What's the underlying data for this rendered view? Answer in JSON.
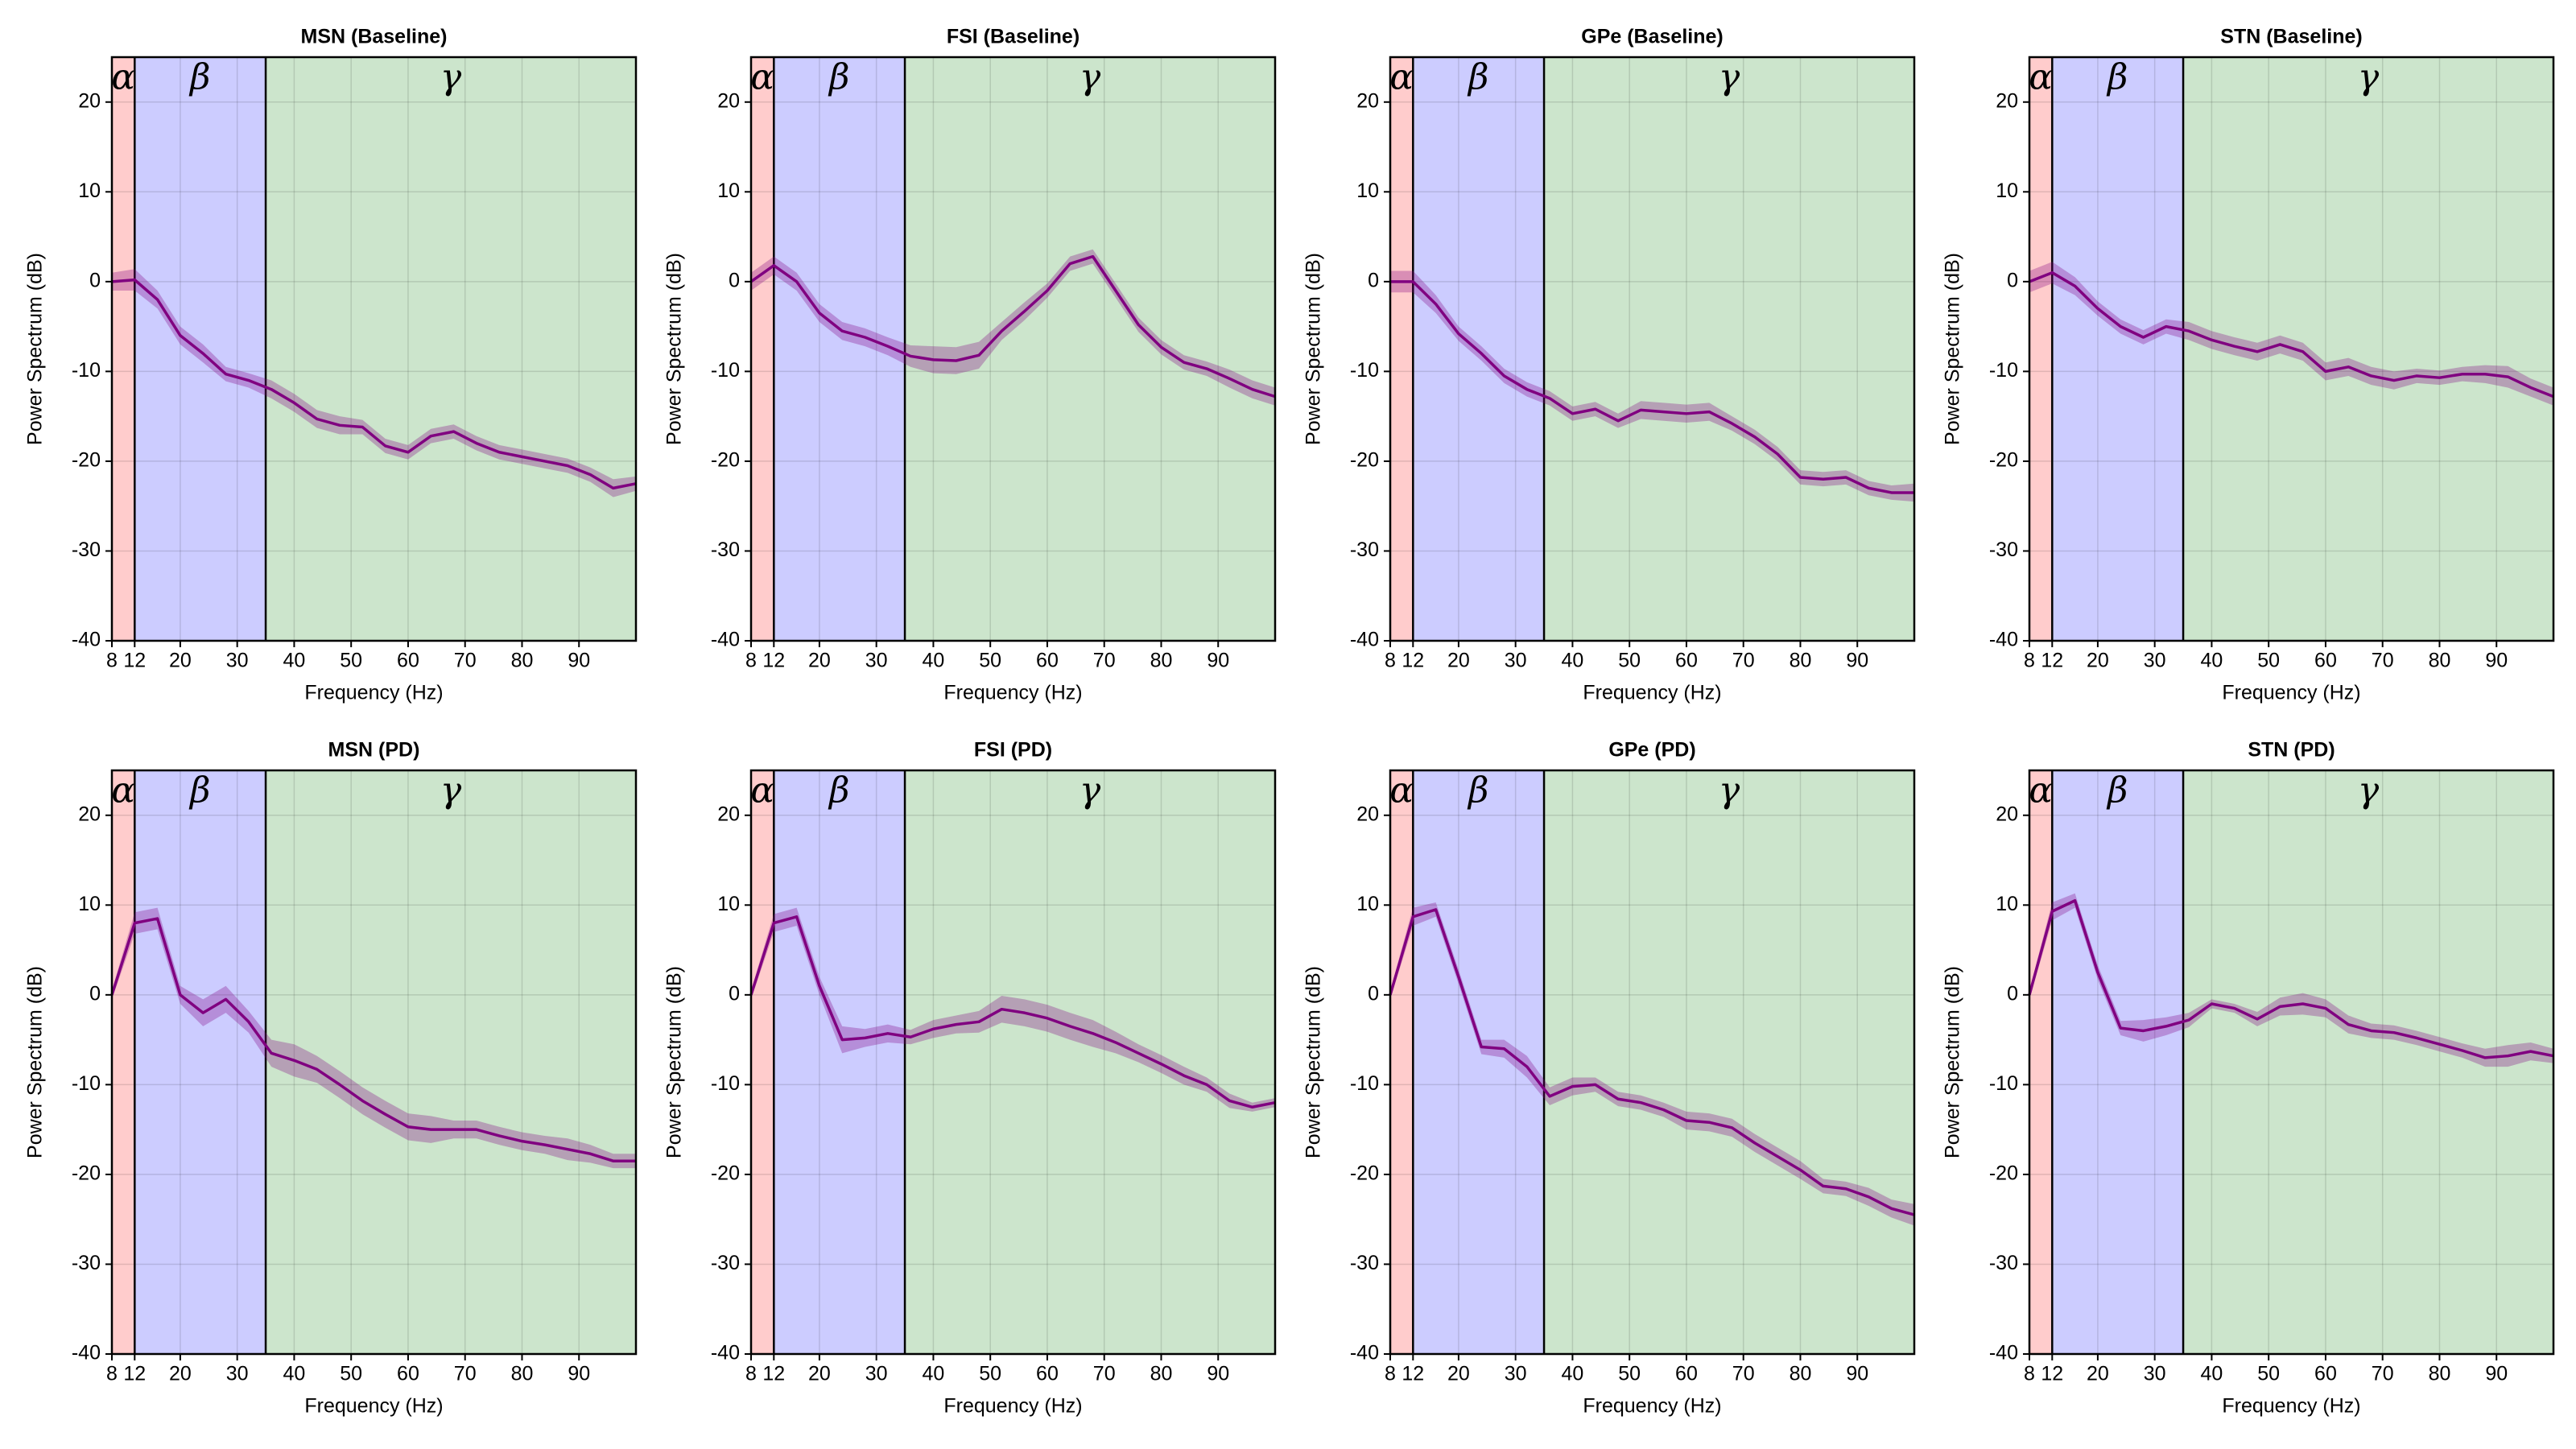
{
  "chart_data": [
    {
      "type": "line",
      "title": "MSN (Baseline)",
      "xlabel": "Frequency (Hz)",
      "ylabel": "Power Spectrum (dB)",
      "x": [
        8,
        12,
        16,
        20,
        24,
        28,
        32,
        36,
        40,
        44,
        48,
        52,
        56,
        60,
        64,
        68,
        72,
        76,
        80,
        84,
        88,
        92,
        96,
        100
      ],
      "xlim": [
        8,
        100
      ],
      "xticks": [
        8,
        12,
        20,
        30,
        40,
        50,
        60,
        70,
        80,
        90
      ],
      "ylim": [
        -40,
        25
      ],
      "yticks": [
        -40,
        -30,
        -20,
        -10,
        0,
        10,
        20
      ],
      "grid": true,
      "regions": [
        {
          "label": "α",
          "from": 8,
          "to": 12,
          "color": "#ffcccc"
        },
        {
          "label": "β",
          "from": 12,
          "to": 35,
          "color": "#ccccff"
        },
        {
          "label": "γ",
          "from": 35,
          "to": 100,
          "color": "#cce5cc"
        }
      ],
      "series": [
        {
          "color": "#800080",
          "values": [
            0,
            0.2,
            -2,
            -6,
            -8,
            -10.3,
            -11,
            -12,
            -13.5,
            -15.3,
            -16,
            -16.2,
            -18.3,
            -19,
            -17.2,
            -16.7,
            -18,
            -19,
            -19.5,
            -20,
            -20.5,
            -21.5,
            -23,
            -22.5
          ],
          "errors": [
            1,
            1.2,
            1,
            1,
            1,
            0.8,
            0.8,
            1,
            1,
            1,
            1,
            0.8,
            0.8,
            0.8,
            0.8,
            0.8,
            0.8,
            0.8,
            0.8,
            0.8,
            0.8,
            0.8,
            1,
            0.8
          ]
        }
      ]
    },
    {
      "type": "line",
      "title": "FSI (Baseline)",
      "xlabel": "Frequency (Hz)",
      "ylabel": "Power Spectrum (dB)",
      "x": [
        8,
        12,
        16,
        20,
        24,
        28,
        32,
        36,
        40,
        44,
        48,
        52,
        56,
        60,
        64,
        68,
        72,
        76,
        80,
        84,
        88,
        92,
        96,
        100
      ],
      "xlim": [
        8,
        100
      ],
      "xticks": [
        8,
        12,
        20,
        30,
        40,
        50,
        60,
        70,
        80,
        90
      ],
      "ylim": [
        -40,
        25
      ],
      "yticks": [
        -40,
        -30,
        -20,
        -10,
        0,
        10,
        20
      ],
      "grid": true,
      "regions": [
        {
          "label": "α",
          "from": 8,
          "to": 12,
          "color": "#ffcccc"
        },
        {
          "label": "β",
          "from": 12,
          "to": 35,
          "color": "#ccccff"
        },
        {
          "label": "γ",
          "from": 35,
          "to": 100,
          "color": "#cce5cc"
        }
      ],
      "series": [
        {
          "color": "#800080",
          "values": [
            0,
            1.8,
            0,
            -3.5,
            -5.5,
            -6.2,
            -7.2,
            -8.3,
            -8.7,
            -8.8,
            -8.2,
            -5.5,
            -3.3,
            -1,
            2,
            2.8,
            -1,
            -4.8,
            -7.3,
            -9,
            -9.7,
            -10.8,
            -12,
            -12.8
          ],
          "errors": [
            1,
            1,
            1,
            1,
            1,
            1,
            1,
            1.2,
            1.5,
            1.5,
            1.5,
            1,
            1,
            0.8,
            0.8,
            0.8,
            0.8,
            0.8,
            0.8,
            0.8,
            0.8,
            1,
            1,
            1
          ]
        }
      ]
    },
    {
      "type": "line",
      "title": "GPe (Baseline)",
      "xlabel": "Frequency (Hz)",
      "ylabel": "Power Spectrum (dB)",
      "x": [
        8,
        12,
        16,
        20,
        24,
        28,
        32,
        36,
        40,
        44,
        48,
        52,
        56,
        60,
        64,
        68,
        72,
        76,
        80,
        84,
        88,
        92,
        96,
        100
      ],
      "xlim": [
        8,
        100
      ],
      "xticks": [
        8,
        12,
        20,
        30,
        40,
        50,
        60,
        70,
        80,
        90
      ],
      "ylim": [
        -40,
        25
      ],
      "yticks": [
        -40,
        -30,
        -20,
        -10,
        0,
        10,
        20
      ],
      "grid": true,
      "regions": [
        {
          "label": "α",
          "from": 8,
          "to": 12,
          "color": "#ffcccc"
        },
        {
          "label": "β",
          "from": 12,
          "to": 35,
          "color": "#ccccff"
        },
        {
          "label": "γ",
          "from": 35,
          "to": 100,
          "color": "#cce5cc"
        }
      ],
      "series": [
        {
          "color": "#800080",
          "values": [
            0,
            0,
            -2.5,
            -5.8,
            -8,
            -10.5,
            -12,
            -13,
            -14.7,
            -14.2,
            -15.5,
            -14.3,
            -14.5,
            -14.7,
            -14.5,
            -15.8,
            -17.3,
            -19.2,
            -21.8,
            -22,
            -21.8,
            -23,
            -23.5,
            -23.5
          ],
          "errors": [
            1.2,
            1.2,
            1,
            0.8,
            0.8,
            0.8,
            0.8,
            0.8,
            0.8,
            0.8,
            0.8,
            1,
            1,
            1,
            1,
            0.8,
            0.8,
            0.8,
            0.8,
            0.8,
            0.8,
            0.8,
            0.8,
            1
          ]
        }
      ]
    },
    {
      "type": "line",
      "title": "STN (Baseline)",
      "xlabel": "Frequency (Hz)",
      "ylabel": "Power Spectrum (dB)",
      "x": [
        8,
        12,
        16,
        20,
        24,
        28,
        32,
        36,
        40,
        44,
        48,
        52,
        56,
        60,
        64,
        68,
        72,
        76,
        80,
        84,
        88,
        92,
        96,
        100
      ],
      "xlim": [
        8,
        100
      ],
      "xticks": [
        8,
        12,
        20,
        30,
        40,
        50,
        60,
        70,
        80,
        90
      ],
      "ylim": [
        -40,
        25
      ],
      "yticks": [
        -40,
        -30,
        -20,
        -10,
        0,
        10,
        20
      ],
      "grid": true,
      "regions": [
        {
          "label": "α",
          "from": 8,
          "to": 12,
          "color": "#ffcccc"
        },
        {
          "label": "β",
          "from": 12,
          "to": 35,
          "color": "#ccccff"
        },
        {
          "label": "γ",
          "from": 35,
          "to": 100,
          "color": "#cce5cc"
        }
      ],
      "series": [
        {
          "color": "#800080",
          "values": [
            0,
            1,
            -0.5,
            -3,
            -5,
            -6.2,
            -5,
            -5.5,
            -6.5,
            -7.2,
            -7.8,
            -7,
            -7.8,
            -10,
            -9.5,
            -10.5,
            -11,
            -10.5,
            -10.7,
            -10.3,
            -10.3,
            -10.6,
            -11.8,
            -12.8
          ],
          "errors": [
            1.2,
            1.2,
            1,
            0.8,
            0.8,
            0.8,
            0.8,
            1,
            1,
            1,
            1,
            1,
            1,
            1,
            1,
            1,
            1,
            0.8,
            0.8,
            0.8,
            1,
            1.2,
            1,
            1
          ]
        }
      ]
    },
    {
      "type": "line",
      "title": "MSN (PD)",
      "xlabel": "Frequency (Hz)",
      "ylabel": "Power Spectrum (dB)",
      "x": [
        8,
        12,
        16,
        20,
        24,
        28,
        32,
        36,
        40,
        44,
        48,
        52,
        56,
        60,
        64,
        68,
        72,
        76,
        80,
        84,
        88,
        92,
        96,
        100
      ],
      "xlim": [
        8,
        100
      ],
      "xticks": [
        8,
        12,
        20,
        30,
        40,
        50,
        60,
        70,
        80,
        90
      ],
      "ylim": [
        -40,
        25
      ],
      "yticks": [
        -40,
        -30,
        -20,
        -10,
        0,
        10,
        20
      ],
      "grid": true,
      "regions": [
        {
          "label": "α",
          "from": 8,
          "to": 12,
          "color": "#ffcccc"
        },
        {
          "label": "β",
          "from": 12,
          "to": 35,
          "color": "#ccccff"
        },
        {
          "label": "γ",
          "from": 35,
          "to": 100,
          "color": "#cce5cc"
        }
      ],
      "series": [
        {
          "color": "#800080",
          "values": [
            0,
            8,
            8.5,
            0,
            -2,
            -0.5,
            -3,
            -6.5,
            -7.3,
            -8.3,
            -10,
            -11.8,
            -13.3,
            -14.7,
            -15,
            -15,
            -15,
            -15.7,
            -16.3,
            -16.7,
            -17.2,
            -17.7,
            -18.5,
            -18.5
          ],
          "errors": [
            0.5,
            1.2,
            1.2,
            1,
            1.5,
            1.5,
            1.2,
            1.5,
            1.8,
            1.5,
            1.5,
            1.5,
            1.5,
            1.5,
            1.5,
            1,
            1,
            1,
            1,
            1,
            1.2,
            1,
            0.8,
            0.8
          ]
        }
      ]
    },
    {
      "type": "line",
      "title": "FSI (PD)",
      "xlabel": "Frequency (Hz)",
      "ylabel": "Power Spectrum (dB)",
      "x": [
        8,
        12,
        16,
        20,
        24,
        28,
        32,
        36,
        40,
        44,
        48,
        52,
        56,
        60,
        64,
        68,
        72,
        76,
        80,
        84,
        88,
        92,
        96,
        100
      ],
      "xlim": [
        8,
        100
      ],
      "xticks": [
        8,
        12,
        20,
        30,
        40,
        50,
        60,
        70,
        80,
        90
      ],
      "ylim": [
        -40,
        25
      ],
      "yticks": [
        -40,
        -30,
        -20,
        -10,
        0,
        10,
        20
      ],
      "grid": true,
      "regions": [
        {
          "label": "α",
          "from": 8,
          "to": 12,
          "color": "#ffcccc"
        },
        {
          "label": "β",
          "from": 12,
          "to": 35,
          "color": "#ccccff"
        },
        {
          "label": "γ",
          "from": 35,
          "to": 100,
          "color": "#cce5cc"
        }
      ],
      "series": [
        {
          "color": "#800080",
          "values": [
            0,
            8,
            8.7,
            1,
            -5,
            -4.8,
            -4.3,
            -4.7,
            -3.8,
            -3.3,
            -3,
            -1.6,
            -2,
            -2.6,
            -3.5,
            -4.3,
            -5.3,
            -6.5,
            -7.7,
            -9,
            -10,
            -11.8,
            -12.5,
            -12
          ],
          "errors": [
            0.5,
            1,
            1,
            1,
            1.5,
            1,
            1,
            0.8,
            1,
            1,
            1.2,
            1.5,
            1.5,
            1.5,
            1.5,
            1.5,
            1.2,
            1,
            1,
            1,
            0.8,
            0.8,
            0.5,
            0.5
          ]
        }
      ]
    },
    {
      "type": "line",
      "title": "GPe (PD)",
      "xlabel": "Frequency (Hz)",
      "ylabel": "Power Spectrum (dB)",
      "x": [
        8,
        12,
        16,
        20,
        24,
        28,
        32,
        36,
        40,
        44,
        48,
        52,
        56,
        60,
        64,
        68,
        72,
        76,
        80,
        84,
        88,
        92,
        96,
        100
      ],
      "xlim": [
        8,
        100
      ],
      "xticks": [
        8,
        12,
        20,
        30,
        40,
        50,
        60,
        70,
        80,
        90
      ],
      "ylim": [
        -40,
        25
      ],
      "yticks": [
        -40,
        -30,
        -20,
        -10,
        0,
        10,
        20
      ],
      "grid": true,
      "regions": [
        {
          "label": "α",
          "from": 8,
          "to": 12,
          "color": "#ffcccc"
        },
        {
          "label": "β",
          "from": 12,
          "to": 35,
          "color": "#ccccff"
        },
        {
          "label": "γ",
          "from": 35,
          "to": 100,
          "color": "#cce5cc"
        }
      ],
      "series": [
        {
          "color": "#800080",
          "values": [
            0,
            8.7,
            9.5,
            2,
            -5.8,
            -6,
            -8,
            -11.3,
            -10.2,
            -10,
            -11.6,
            -12,
            -12.8,
            -14,
            -14.2,
            -14.8,
            -16.5,
            -18,
            -19.5,
            -21.3,
            -21.6,
            -22.5,
            -23.8,
            -24.5
          ],
          "errors": [
            0.5,
            1,
            0.8,
            0.8,
            0.8,
            1,
            1.2,
            1,
            1,
            0.8,
            0.8,
            0.8,
            0.8,
            1,
            1,
            1,
            1,
            1,
            1,
            0.8,
            0.8,
            1,
            1,
            1.2
          ]
        }
      ]
    },
    {
      "type": "line",
      "title": "STN (PD)",
      "xlabel": "Frequency (Hz)",
      "ylabel": "Power Spectrum (dB)",
      "x": [
        8,
        12,
        16,
        20,
        24,
        28,
        32,
        36,
        40,
        44,
        48,
        52,
        56,
        60,
        64,
        68,
        72,
        76,
        80,
        84,
        88,
        92,
        96,
        100
      ],
      "xlim": [
        8,
        100
      ],
      "xticks": [
        8,
        12,
        20,
        30,
        40,
        50,
        60,
        70,
        80,
        90
      ],
      "ylim": [
        -40,
        25
      ],
      "yticks": [
        -40,
        -30,
        -20,
        -10,
        0,
        10,
        20
      ],
      "grid": true,
      "regions": [
        {
          "label": "α",
          "from": 8,
          "to": 12,
          "color": "#ffcccc"
        },
        {
          "label": "β",
          "from": 12,
          "to": 35,
          "color": "#ccccff"
        },
        {
          "label": "γ",
          "from": 35,
          "to": 100,
          "color": "#cce5cc"
        }
      ],
      "series": [
        {
          "color": "#800080",
          "values": [
            0,
            9.3,
            10.5,
            2.5,
            -3.7,
            -4,
            -3.5,
            -2.8,
            -1,
            -1.5,
            -2.7,
            -1.3,
            -1,
            -1.5,
            -3.3,
            -4,
            -4.2,
            -4.8,
            -5.5,
            -6.2,
            -7,
            -6.8,
            -6.3,
            -6.8
          ],
          "errors": [
            0.5,
            1,
            0.8,
            0.8,
            0.8,
            1.2,
            1,
            0.8,
            0.5,
            0.5,
            0.8,
            1,
            1.2,
            1,
            1,
            0.8,
            0.8,
            0.8,
            0.8,
            0.8,
            1,
            1.2,
            1,
            0.8
          ]
        }
      ]
    }
  ]
}
